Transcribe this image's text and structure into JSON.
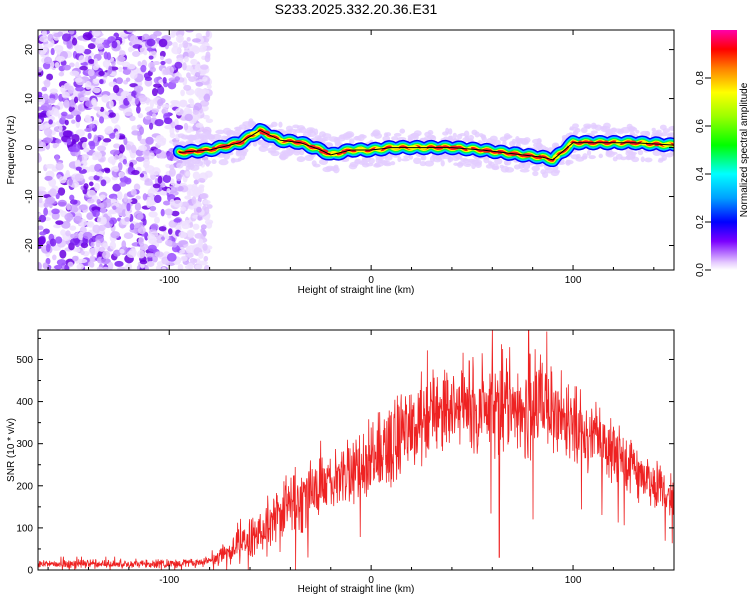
{
  "chart_data": [
    {
      "type": "heatmap",
      "title": "S233.2025.332.20.36.E31",
      "xlabel": "Height of straight line (km)",
      "ylabel": "Frequency (Hz)",
      "xlim": [
        -165,
        150
      ],
      "ylim": [
        -25,
        24
      ],
      "xticks": [
        -100,
        0,
        100
      ],
      "yticks": [
        20,
        10,
        0,
        -10,
        -20
      ],
      "colorbar": {
        "label": "Normalized spectral amplitude",
        "range": [
          0,
          1
        ],
        "ticks": [
          "0.0",
          "0.2",
          "0.4",
          "0.6",
          "0.8"
        ],
        "colormap": "rainbow"
      },
      "noise_region_x": [
        -165,
        -80
      ],
      "ridge_fit_line": {
        "x": [
          -95,
          -80,
          -65,
          -55,
          -45,
          -35,
          -25,
          -20,
          -10,
          0,
          10,
          20,
          40,
          55,
          65,
          75,
          85,
          90,
          100,
          110,
          130,
          150
        ],
        "y": [
          -1,
          -0.5,
          1,
          3.5,
          1.5,
          1,
          -0.5,
          -1.5,
          -0.5,
          -0.5,
          0,
          0,
          0,
          -0.5,
          -1,
          -1.5,
          -2,
          -2.5,
          1,
          1,
          1,
          0.5
        ]
      }
    },
    {
      "type": "line",
      "title": "",
      "xlabel": "Height of straight line (km)",
      "ylabel": "SNR (10 * v/v)",
      "xlim": [
        -165,
        150
      ],
      "ylim": [
        0,
        570
      ],
      "xticks": [
        -100,
        0,
        100
      ],
      "yticks": [
        0,
        100,
        200,
        300,
        400,
        500
      ],
      "series": [
        {
          "name": "SNR",
          "color": "#ee2222",
          "envelope_x": [
            -165,
            -100,
            -80,
            -70,
            -60,
            -50,
            -40,
            -30,
            -20,
            -10,
            0,
            10,
            20,
            30,
            40,
            50,
            60,
            70,
            80,
            90,
            100,
            110,
            120,
            130,
            140,
            150
          ],
          "envelope_mean": [
            15,
            15,
            20,
            45,
            75,
            110,
            150,
            180,
            210,
            235,
            265,
            300,
            340,
            375,
            385,
            385,
            385,
            395,
            390,
            370,
            345,
            320,
            280,
            240,
            205,
            170
          ],
          "envelope_spread": [
            12,
            12,
            15,
            30,
            55,
            80,
            90,
            80,
            80,
            90,
            100,
            110,
            110,
            110,
            120,
            130,
            140,
            150,
            150,
            130,
            110,
            100,
            90,
            80,
            70,
            60
          ],
          "peak_max": 570
        }
      ]
    }
  ]
}
